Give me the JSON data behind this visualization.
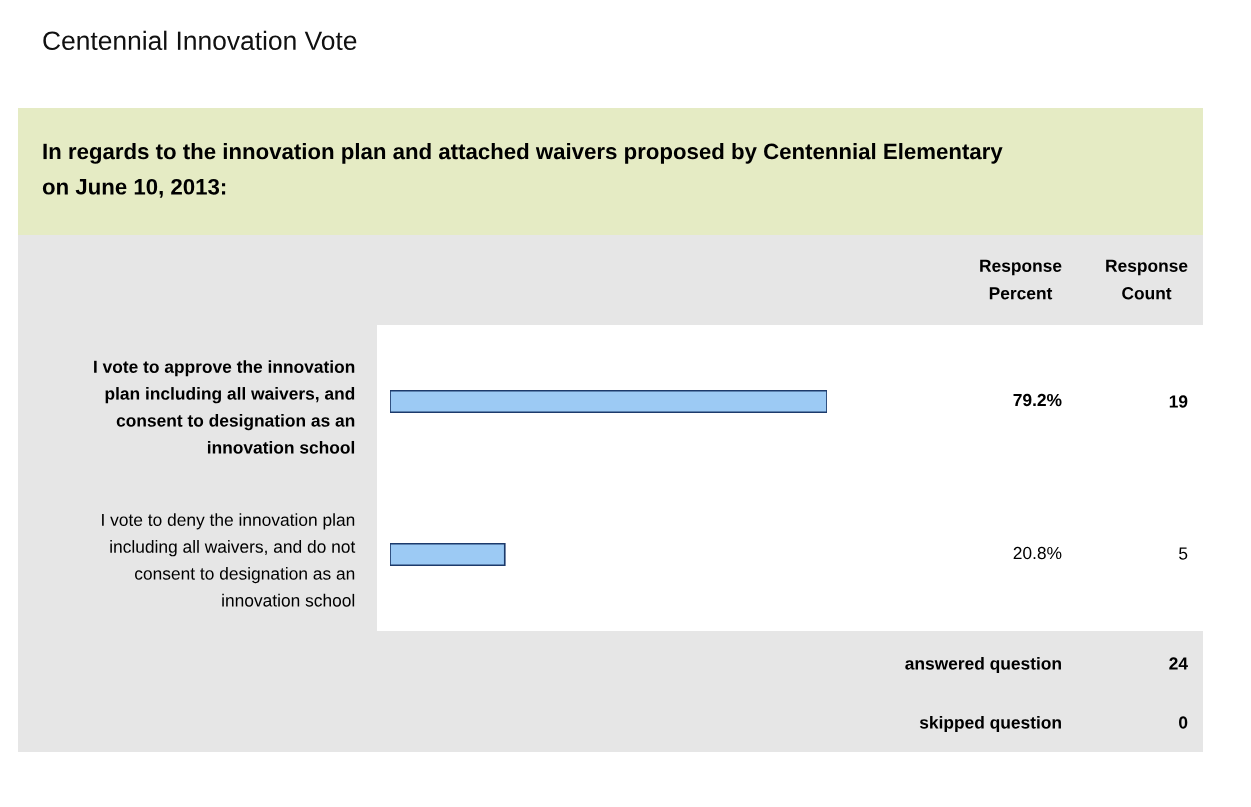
{
  "chart_data": {
    "type": "bar",
    "orientation": "horizontal",
    "title": "Centennial Innovation Vote",
    "subtitle": "In regards to the innovation plan and attached waivers proposed by Centennial Elementary\non June 10, 2013:",
    "categories": [
      "I vote to approve the innovation\nplan including all waivers, and\nconsent to designation as an\ninnovation school",
      "I vote to deny the innovation plan\nincluding all waivers, and do not\nconsent to designation as an\ninnovation school"
    ],
    "values": [
      79.2,
      20.8
    ],
    "value_labels": [
      "79.2%",
      "20.8%"
    ],
    "color": "#9ccaf4",
    "tick_labels": "y",
    "grid": false,
    "legend": false,
    "annotations": [
      "Response\nPercent",
      "Response\nCount",
      "19",
      "5",
      "answered question",
      "24",
      "skipped question",
      "0"
    ]
  }
}
